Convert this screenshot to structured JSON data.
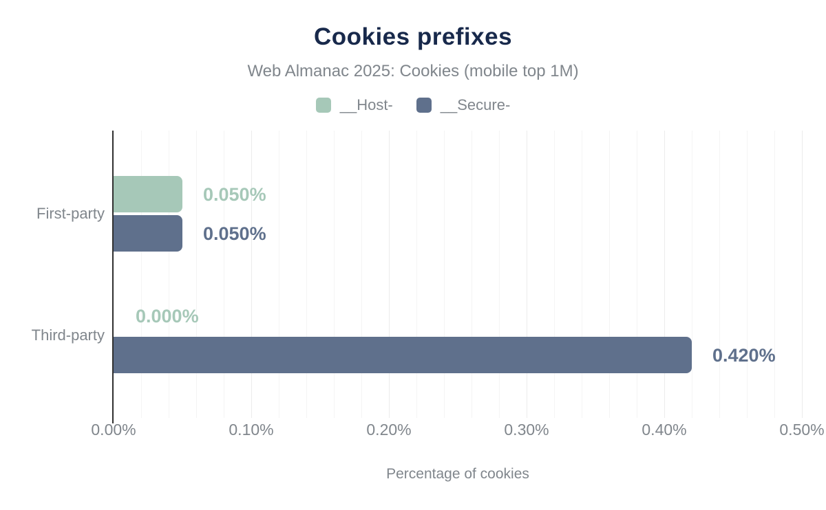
{
  "chart": {
    "title": "Cookies prefixes",
    "subtitle": "Web Almanac 2025: Cookies (mobile top 1M)",
    "xlabel": "Percentage of cookies"
  },
  "colors": {
    "title": "#18294b",
    "muted_text": "#80868c",
    "host_green": "#a6c8b8",
    "secure_slate": "#5f708c",
    "axis_line": "#2f2f2f",
    "grid_minor": "#f4f4f4",
    "grid_major": "#ebebeb",
    "background": "#ffffff"
  },
  "chart_data": {
    "type": "bar",
    "orientation": "horizontal",
    "title": "Cookies prefixes",
    "subtitle": "Web Almanac 2025: Cookies (mobile top 1M)",
    "xlabel": "Percentage of cookies",
    "categories": [
      "First-party",
      "Third-party"
    ],
    "series": [
      {
        "name": "__Host-",
        "color": "#a6c8b8",
        "values": [
          0.05,
          0.0
        ],
        "data_labels": [
          "0.050%",
          "0.000%"
        ]
      },
      {
        "name": "__Secure-",
        "color": "#5f708c",
        "values": [
          0.05,
          0.42
        ],
        "data_labels": [
          "0.050%",
          "0.420%"
        ]
      }
    ],
    "xlim": [
      0,
      0.5
    ],
    "xtick_step": 0.1,
    "xticks": [
      "0.00%",
      "0.10%",
      "0.20%",
      "0.30%",
      "0.40%",
      "0.50%"
    ],
    "minor_grid_step": 0.02,
    "grid": true,
    "legend_position": "top"
  }
}
